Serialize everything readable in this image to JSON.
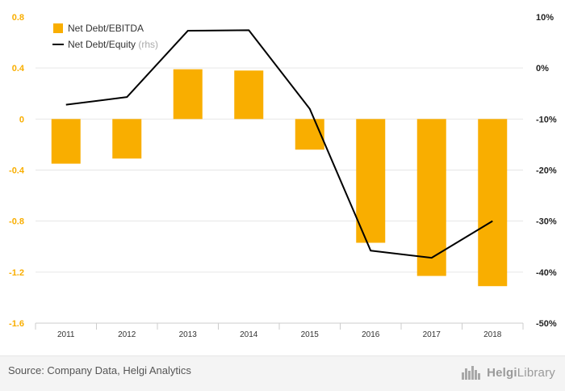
{
  "chart_data": {
    "type": "bar",
    "categories": [
      "2011",
      "2012",
      "2013",
      "2014",
      "2015",
      "2016",
      "2017",
      "2018"
    ],
    "series": [
      {
        "name": "Net Debt/EBITDA",
        "type": "bar",
        "axis": "left",
        "values": [
          -0.35,
          -0.31,
          0.39,
          0.38,
          -0.24,
          -0.97,
          -1.23,
          -1.31
        ]
      },
      {
        "name": "Net Debt/Equity",
        "name_suffix": "(rhs)",
        "type": "line",
        "axis": "right",
        "values": [
          -7.2,
          -5.7,
          7.3,
          7.4,
          -8.0,
          -35.8,
          -37.2,
          -30.0
        ]
      }
    ],
    "y_left": {
      "ticks": [
        "0.8",
        "0.4",
        "0",
        "-0.4",
        "-0.8",
        "-1.2",
        "-1.6"
      ],
      "ylim": [
        -1.6,
        0.8
      ]
    },
    "y_right": {
      "ticks": [
        "10%",
        "0%",
        "-10%",
        "-20%",
        "-30%",
        "-40%",
        "-50%"
      ],
      "ylim": [
        -50,
        10
      ]
    },
    "grid": true,
    "legend": "top-left",
    "colors": {
      "bar": "#f9ae00",
      "line": "#000000",
      "left_axis_labels": "#f9ae00",
      "grid": "#e6e6e6"
    }
  },
  "footer": {
    "source": "Source: Company Data, Helgi Analytics",
    "brand_bold": "Helgi",
    "brand_light": "Library",
    "brand_icon": "city-skyline-icon"
  }
}
